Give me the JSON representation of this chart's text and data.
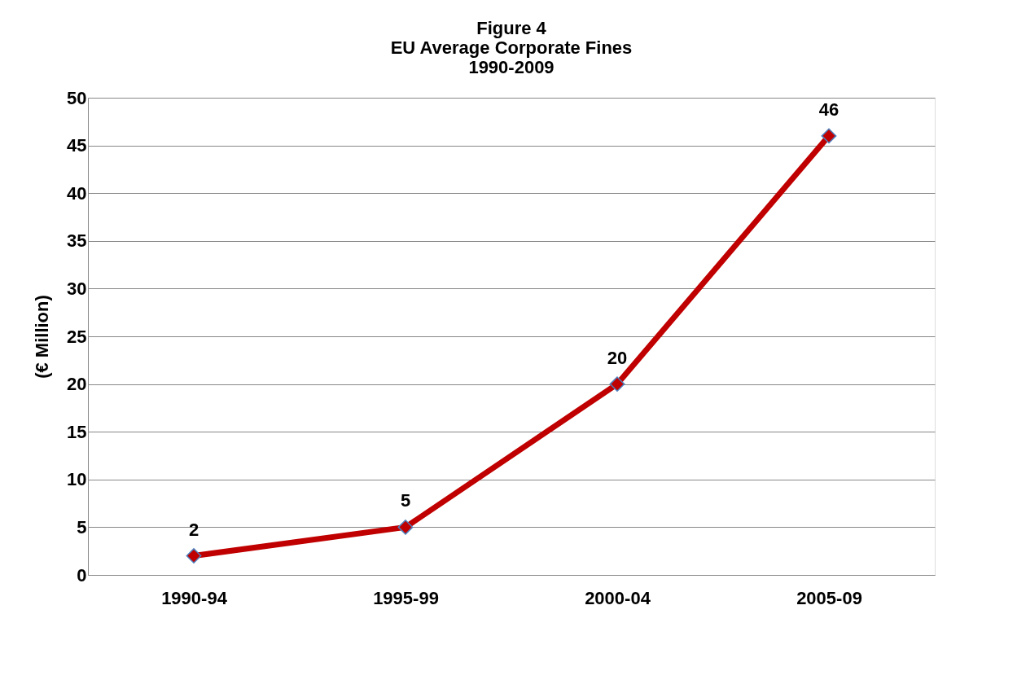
{
  "chart_data": {
    "type": "line",
    "title": "Figure 4\nEU Average Corporate Fines\n1990-2009",
    "ylabel": "(€ Million)",
    "categories": [
      "1990-94",
      "1995-99",
      "2000-04",
      "2005-09"
    ],
    "series": [
      {
        "color": "#c00000",
        "values": [
          2,
          5,
          20,
          46
        ]
      }
    ],
    "ylim": [
      0,
      50
    ],
    "yticks": [
      0,
      5,
      10,
      15,
      20,
      25,
      30,
      35,
      40,
      45,
      50
    ],
    "grid": "y",
    "marker": "diamond",
    "line_style": "solid",
    "data_labels": true
  }
}
